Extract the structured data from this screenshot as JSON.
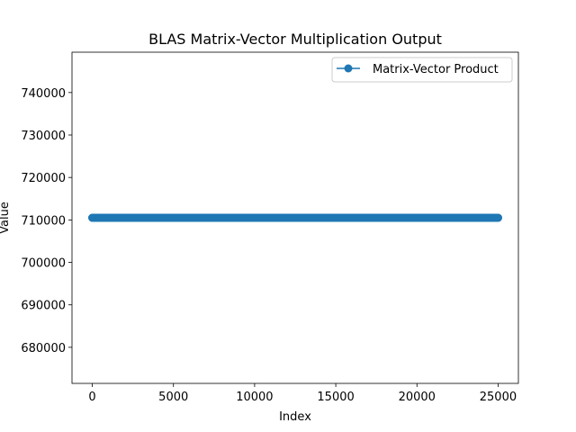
{
  "chart_data": {
    "type": "line",
    "title": "BLAS Matrix-Vector Multiplication Output",
    "xlabel": "Index",
    "ylabel": "Value",
    "xlim": [
      -1250,
      26250
    ],
    "ylim": [
      671500,
      749500
    ],
    "x_ticks": [
      0,
      5000,
      10000,
      15000,
      20000,
      25000
    ],
    "x_tick_labels": [
      "0",
      "5000",
      "10000",
      "15000",
      "20000",
      "25000"
    ],
    "y_ticks": [
      680000,
      690000,
      700000,
      710000,
      720000,
      730000,
      740000
    ],
    "y_tick_labels": [
      "680000",
      "690000",
      "700000",
      "710000",
      "720000",
      "730000",
      "740000"
    ],
    "grid": false,
    "legend_position": "top-right",
    "series": [
      {
        "name": "Matrix-Vector Product",
        "color": "#1f77b4",
        "marker": "circle",
        "x_start": 0,
        "x_end": 25000,
        "constant_value": 710500
      }
    ]
  }
}
